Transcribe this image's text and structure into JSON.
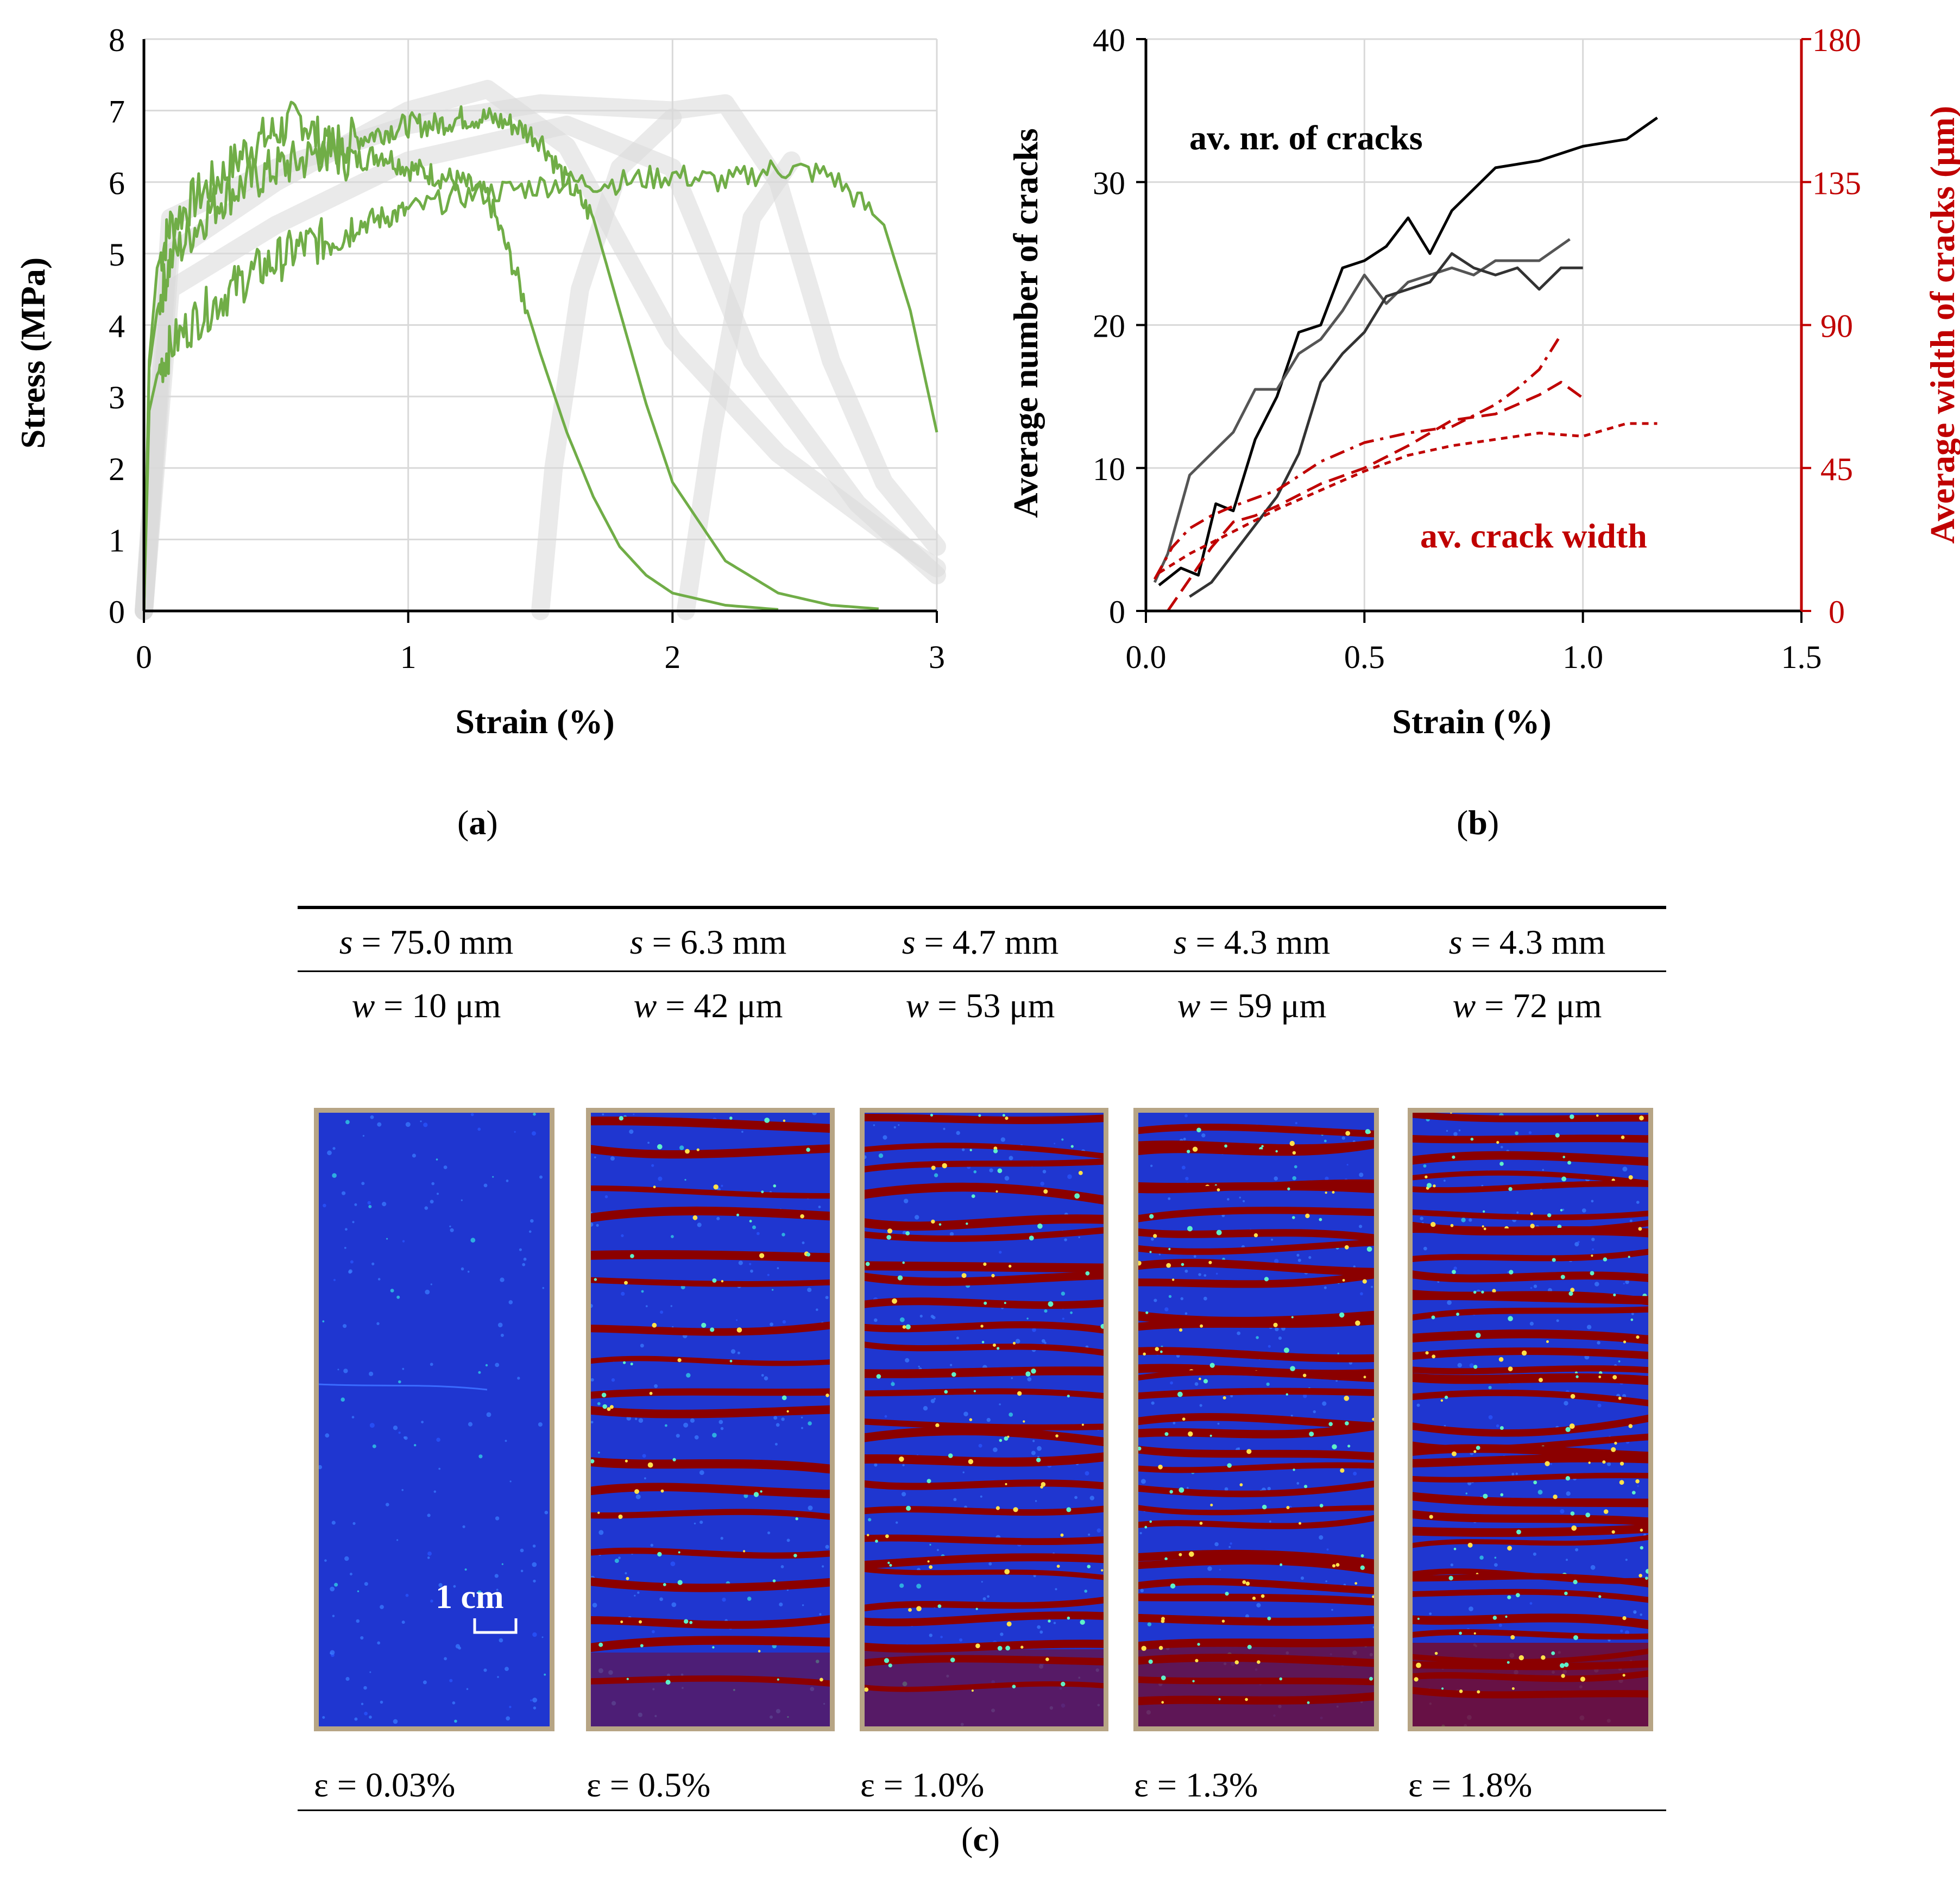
{
  "chart_data": [
    {
      "panel": "a",
      "type": "line",
      "xlabel": "Strain (%)",
      "ylabel": "Stress (MPa)",
      "xlim": [
        0,
        3
      ],
      "ylim": [
        0,
        8
      ],
      "xticks": [
        0,
        1,
        2,
        3
      ],
      "yticks": [
        0,
        1,
        2,
        3,
        4,
        5,
        6,
        7,
        8
      ],
      "grid": true,
      "series_color": "#70ad47",
      "background_curves_color": "#d9d9d9",
      "series": [
        {
          "x": [
            0,
            0.02,
            0.05,
            0.1,
            0.2,
            0.3,
            0.4,
            0.5,
            0.6,
            0.7,
            0.8,
            0.9,
            1.0,
            1.1,
            1.2,
            1.3,
            1.4,
            1.5,
            1.6,
            1.7,
            1.8,
            1.9,
            2.0,
            2.2,
            2.4
          ],
          "y": [
            0,
            3.5,
            4.8,
            5.4,
            5.8,
            6.1,
            6.5,
            6.7,
            6.9,
            6.4,
            6.3,
            6.4,
            6.2,
            6.1,
            6.0,
            5.8,
            4.8,
            3.6,
            2.5,
            1.6,
            0.9,
            0.5,
            0.25,
            0.08,
            0.02
          ]
        },
        {
          "x": [
            0,
            0.02,
            0.05,
            0.1,
            0.2,
            0.3,
            0.4,
            0.5,
            0.6,
            0.7,
            0.8,
            0.9,
            1.0,
            1.1,
            1.2,
            1.3,
            1.4,
            1.5,
            1.6,
            1.7,
            1.8,
            1.9,
            2.0,
            2.2,
            2.4,
            2.6,
            2.78
          ],
          "y": [
            0,
            3.4,
            4.2,
            4.9,
            5.4,
            5.8,
            6.0,
            6.2,
            6.3,
            6.5,
            6.6,
            6.7,
            6.8,
            6.8,
            6.9,
            6.9,
            6.8,
            6.6,
            6.0,
            5.5,
            4.2,
            2.9,
            1.8,
            0.7,
            0.25,
            0.08,
            0.03
          ]
        },
        {
          "x": [
            0,
            0.02,
            0.05,
            0.1,
            0.2,
            0.3,
            0.4,
            0.5,
            0.6,
            0.7,
            0.8,
            0.9,
            1.0,
            1.2,
            1.4,
            1.6,
            1.8,
            2.0,
            2.2,
            2.4,
            2.6,
            2.8,
            2.9,
            3.0
          ],
          "y": [
            0,
            2.8,
            3.3,
            3.7,
            4.1,
            4.4,
            4.7,
            4.9,
            5.1,
            5.2,
            5.4,
            5.5,
            5.6,
            5.8,
            5.9,
            6.0,
            6.0,
            6.1,
            6.0,
            6.2,
            6.1,
            5.4,
            4.2,
            2.5
          ]
        }
      ]
    },
    {
      "panel": "b",
      "type": "line",
      "xlabel": "Strain (%)",
      "ylabel": "Average number of cracks",
      "y2label": "Average width of cracks (μm)",
      "xlim": [
        0,
        1.5
      ],
      "ylim": [
        0,
        40
      ],
      "y2lim": [
        0,
        180
      ],
      "xticks": [
        "0.0",
        "0.5",
        "1.0",
        "1.5"
      ],
      "yticks": [
        0,
        10,
        20,
        30,
        40
      ],
      "y2ticks": [
        0,
        45,
        90,
        135,
        180
      ],
      "grid": true,
      "y2_color": "#c00000",
      "annotations": [
        "av. nr. of cracks",
        "av. crack width"
      ],
      "series": [
        {
          "axis": "left",
          "color": "#000000",
          "x": [
            0.03,
            0.08,
            0.12,
            0.16,
            0.2,
            0.25,
            0.3,
            0.35,
            0.4,
            0.45,
            0.5,
            0.55,
            0.6,
            0.65,
            0.7,
            0.8,
            0.9,
            1.0,
            1.1,
            1.17
          ],
          "y": [
            1.8,
            3.0,
            2.5,
            7.5,
            7.0,
            12.0,
            15.0,
            19.5,
            20.0,
            24.0,
            24.5,
            25.5,
            27.5,
            25.0,
            28.0,
            31.0,
            31.5,
            32.5,
            33.0,
            34.5
          ]
        },
        {
          "axis": "left",
          "color": "#555555",
          "x": [
            0.02,
            0.05,
            0.1,
            0.15,
            0.2,
            0.25,
            0.3,
            0.35,
            0.4,
            0.45,
            0.5,
            0.55,
            0.6,
            0.65,
            0.7,
            0.75,
            0.8,
            0.9,
            0.97
          ],
          "y": [
            2.0,
            4.0,
            9.5,
            11.0,
            12.5,
            15.5,
            15.5,
            18.0,
            19.0,
            21.0,
            23.5,
            21.5,
            23.0,
            23.5,
            24.0,
            23.5,
            24.5,
            24.5,
            26.0
          ]
        },
        {
          "axis": "left",
          "color": "#333333",
          "x": [
            0.1,
            0.15,
            0.2,
            0.25,
            0.3,
            0.35,
            0.4,
            0.45,
            0.5,
            0.55,
            0.6,
            0.65,
            0.7,
            0.75,
            0.8,
            0.85,
            0.9,
            0.95,
            1.0
          ],
          "y": [
            1.0,
            2.0,
            4.0,
            6.0,
            8.0,
            11.0,
            16.0,
            18.0,
            19.5,
            22.0,
            22.5,
            23.0,
            25.0,
            24.0,
            23.5,
            24.0,
            22.5,
            24.0,
            24.0
          ]
        },
        {
          "axis": "right",
          "color": "#c00000",
          "dash": "dash-dot",
          "x": [
            0.02,
            0.06,
            0.1,
            0.15,
            0.2,
            0.3,
            0.4,
            0.5,
            0.6,
            0.7,
            0.8,
            0.85,
            0.9,
            0.95
          ],
          "y": [
            10,
            20,
            26,
            30,
            33,
            38,
            47,
            53,
            56,
            58,
            65,
            70,
            76,
            87
          ]
        },
        {
          "axis": "right",
          "color": "#c00000",
          "dash": "long-dash",
          "x": [
            0.05,
            0.1,
            0.15,
            0.2,
            0.25,
            0.3,
            0.4,
            0.5,
            0.6,
            0.7,
            0.8,
            0.9,
            0.95,
            1.0
          ],
          "y": [
            0,
            10,
            20,
            28,
            30,
            33,
            40,
            45,
            52,
            60,
            62,
            68,
            72,
            67
          ]
        },
        {
          "axis": "right",
          "color": "#c00000",
          "dash": "short-dash",
          "x": [
            0.03,
            0.1,
            0.2,
            0.3,
            0.4,
            0.5,
            0.6,
            0.7,
            0.8,
            0.9,
            1.0,
            1.1,
            1.17
          ],
          "y": [
            12,
            18,
            25,
            32,
            38,
            44,
            49,
            52,
            54,
            56,
            55,
            59,
            59
          ]
        }
      ]
    }
  ],
  "captions": {
    "a": "a",
    "b": "b",
    "c": "c"
  },
  "table": {
    "s_row": [
      "75.0 mm",
      "6.3 mm",
      "4.7 mm",
      "4.3 mm",
      "4.3 mm"
    ],
    "w_row": [
      "10 μm",
      "42 μm",
      "53 μm",
      "59 μm",
      "72 μm"
    ],
    "s_symbol": "s",
    "w_symbol": "w",
    "eps_symbol": "ε",
    "eps_row": [
      "0.03%",
      "0.5%",
      "1.0%",
      "1.3%",
      "1.8%"
    ]
  },
  "scale_bar_label": "1 cm",
  "panel_colors": {
    "background": "#1f36d0",
    "crack": "#8b0000",
    "frame": "#b7a585"
  }
}
